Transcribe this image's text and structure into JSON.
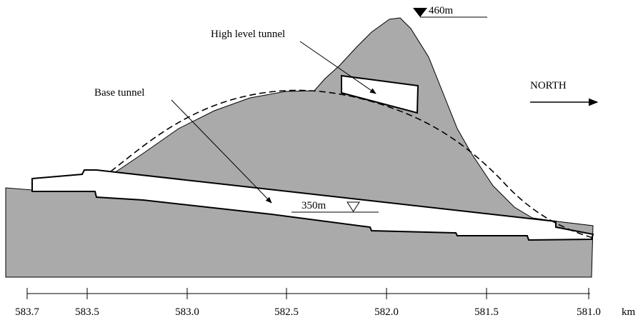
{
  "labels": {
    "top_level": "460m",
    "high_tunnel": "High level tunnel",
    "north": "NORTH",
    "base_tunnel": "Base tunnel",
    "base_level": "350m"
  },
  "axis": {
    "ticks": [
      "583.7",
      "583.5",
      "583.0",
      "582.5",
      "582.0",
      "581.5",
      "581.0"
    ],
    "unit": "km"
  }
}
